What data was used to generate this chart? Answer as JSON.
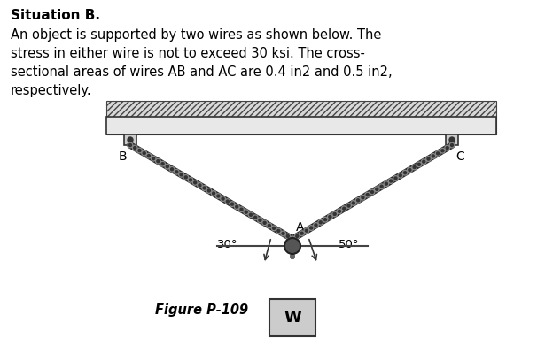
{
  "title_bold": "Situation B.",
  "description_line1": "An object is supported by two wires as shown below. The",
  "description_line2": "stress in either wire is not to exceed 30 ksi. The cross-",
  "description_line3": "sectional areas of wires AB and AC are 0.4 in2 and 0.5 in2,",
  "description_line4": "respectively.",
  "figure_label": "Figure P-109",
  "angle_AB_label": "30°",
  "angle_AC_label": "50°",
  "label_A": "A",
  "label_B": "B",
  "label_C": "C",
  "label_W": "W",
  "bg_color": "#ffffff",
  "text_color": "#000000",
  "wire_dark": "#2a2a2a",
  "wire_light": "#aaaaaa",
  "ceiling_face": "#d0d0d0",
  "ceiling_edge": "#333333",
  "box_face": "#cccccc",
  "box_edge": "#333333",
  "pin_color": "#333333",
  "ref_line_color": "#444444",
  "angle_arc_color": "#333333"
}
